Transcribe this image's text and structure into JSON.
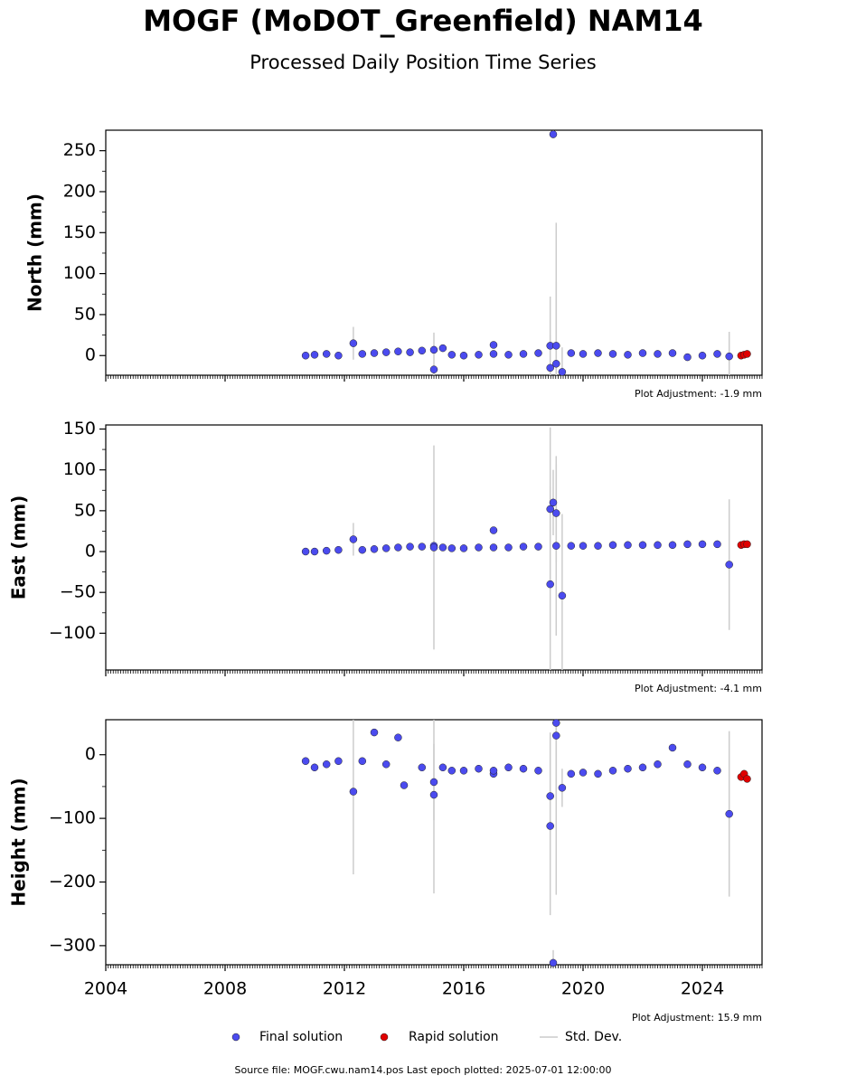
{
  "title": "MOGF (MoDOT_Greenfield) NAM14",
  "subtitle": "Processed Daily Position Time Series",
  "footer": "Source file: MOGF.cwu.nam14.pos  Last epoch plotted: 2025-07-01 12:00:00",
  "error_name": "Std. Dev.",
  "chart_data": [
    {
      "type": "scatter",
      "ylabel": "North (mm)",
      "annotation": "Plot Adjustment: -1.9 mm",
      "xlim": [
        2004,
        2026
      ],
      "ylim": [
        -24,
        275
      ],
      "yticks": [
        0,
        50,
        100,
        150,
        200,
        250
      ],
      "series": [
        {
          "name": "Final solution",
          "color": "#4b4bef",
          "x": [
            2010.7,
            2011.0,
            2011.4,
            2011.8,
            2012.3,
            2012.6,
            2013.0,
            2013.4,
            2013.8,
            2014.2,
            2014.6,
            2015.0,
            2015.0,
            2015.3,
            2015.6,
            2016.0,
            2016.5,
            2017.0,
            2017.0,
            2017.5,
            2018.0,
            2018.5,
            2018.9,
            2018.9,
            2019.0,
            2019.1,
            2019.1,
            2019.3,
            2019.6,
            2020.0,
            2020.5,
            2021.0,
            2021.5,
            2022.0,
            2022.5,
            2023.0,
            2023.5,
            2024.0,
            2024.5,
            2024.9
          ],
          "values": [
            0,
            1,
            2,
            0,
            15,
            2,
            3,
            4,
            5,
            4,
            6,
            7,
            -17,
            9,
            1,
            0,
            1,
            2,
            13,
            1,
            2,
            3,
            12,
            -15,
            270,
            12,
            -10,
            -20,
            3,
            2,
            3,
            2,
            1,
            3,
            2,
            3,
            -2,
            0,
            2,
            -1
          ],
          "errors": [
            3,
            3,
            3,
            3,
            20,
            3,
            3,
            3,
            3,
            3,
            3,
            3,
            45,
            3,
            3,
            3,
            3,
            3,
            3,
            3,
            3,
            3,
            60,
            40,
            5,
            150,
            100,
            30,
            3,
            3,
            3,
            3,
            3,
            3,
            3,
            3,
            3,
            3,
            3,
            30
          ]
        },
        {
          "name": "Rapid solution",
          "color": "#e00000",
          "x": [
            2025.3,
            2025.4,
            2025.5
          ],
          "values": [
            0,
            1,
            2
          ]
        }
      ]
    },
    {
      "type": "scatter",
      "ylabel": "East (mm)",
      "annotation": "Plot Adjustment: -4.1 mm",
      "xlim": [
        2004,
        2026
      ],
      "ylim": [
        -145,
        155
      ],
      "yticks": [
        {
          "value": -100,
          "label": "−100"
        },
        {
          "value": -50,
          "label": "−50"
        },
        0,
        50,
        100,
        150
      ],
      "series": [
        {
          "name": "Final solution",
          "color": "#4b4bef",
          "x": [
            2010.7,
            2011.0,
            2011.4,
            2011.8,
            2012.3,
            2012.6,
            2013.0,
            2013.4,
            2013.8,
            2014.2,
            2014.6,
            2015.0,
            2015.0,
            2015.3,
            2015.6,
            2016.0,
            2016.5,
            2017.0,
            2017.0,
            2017.5,
            2018.0,
            2018.5,
            2018.9,
            2018.9,
            2019.0,
            2019.1,
            2019.1,
            2019.3,
            2019.6,
            2020.0,
            2020.5,
            2021.0,
            2021.5,
            2022.0,
            2022.5,
            2023.0,
            2023.5,
            2024.0,
            2024.5,
            2024.9
          ],
          "values": [
            0,
            0,
            1,
            2,
            15,
            2,
            3,
            4,
            5,
            6,
            6,
            7,
            5,
            5,
            4,
            4,
            5,
            5,
            26,
            5,
            6,
            6,
            52,
            -40,
            60,
            47,
            7,
            -54,
            7,
            7,
            7,
            8,
            8,
            8,
            8,
            8,
            9,
            9,
            9,
            -16
          ],
          "errors": [
            3,
            3,
            3,
            3,
            20,
            3,
            3,
            3,
            3,
            3,
            3,
            3,
            125,
            3,
            3,
            3,
            3,
            3,
            3,
            3,
            3,
            3,
            100,
            120,
            40,
            60,
            110,
            100,
            3,
            3,
            3,
            3,
            3,
            3,
            3,
            3,
            3,
            3,
            3,
            80
          ]
        },
        {
          "name": "Rapid solution",
          "color": "#e00000",
          "x": [
            2025.3,
            2025.4,
            2025.5
          ],
          "values": [
            8,
            9,
            9
          ]
        }
      ]
    },
    {
      "type": "scatter",
      "ylabel": "Height (mm)",
      "annotation": "Plot Adjustment: 15.9 mm",
      "xlim": [
        2004,
        2026
      ],
      "xticks": [
        2004,
        2008,
        2012,
        2016,
        2020,
        2024
      ],
      "ylim": [
        -330,
        55
      ],
      "yticks": [
        {
          "value": -300,
          "label": "−300"
        },
        {
          "value": -200,
          "label": "−200"
        },
        {
          "value": -100,
          "label": "−100"
        },
        0
      ],
      "series": [
        {
          "name": "Final solution",
          "color": "#4b4bef",
          "x": [
            2010.7,
            2011.0,
            2011.4,
            2011.8,
            2012.3,
            2012.6,
            2013.0,
            2013.4,
            2013.8,
            2014.0,
            2014.6,
            2015.0,
            2015.0,
            2015.3,
            2015.6,
            2016.0,
            2016.5,
            2017.0,
            2017.0,
            2017.5,
            2018.0,
            2018.5,
            2018.9,
            2018.9,
            2019.0,
            2019.1,
            2019.1,
            2019.3,
            2019.6,
            2020.0,
            2020.5,
            2021.0,
            2021.5,
            2022.0,
            2022.5,
            2023.0,
            2023.5,
            2024.0,
            2024.5,
            2024.9
          ],
          "values": [
            -10,
            -20,
            -15,
            -10,
            -58,
            -10,
            35,
            -15,
            27,
            -48,
            -20,
            -63,
            -43,
            -20,
            -25,
            -25,
            -22,
            -30,
            -25,
            -20,
            -22,
            -25,
            -65,
            -112,
            -327,
            50,
            30,
            -52,
            -30,
            -28,
            -30,
            -25,
            -22,
            -20,
            -15,
            11,
            -15,
            -20,
            -25,
            -93
          ],
          "errors": [
            5,
            5,
            5,
            5,
            130,
            5,
            5,
            5,
            5,
            5,
            5,
            155,
            60,
            5,
            5,
            5,
            5,
            5,
            5,
            5,
            5,
            5,
            100,
            140,
            20,
            120,
            250,
            30,
            5,
            5,
            5,
            5,
            5,
            5,
            5,
            5,
            5,
            5,
            5,
            130
          ]
        },
        {
          "name": "Rapid solution",
          "color": "#e00000",
          "x": [
            2025.3,
            2025.4,
            2025.5
          ],
          "values": [
            -35,
            -30,
            -38
          ]
        }
      ]
    }
  ]
}
